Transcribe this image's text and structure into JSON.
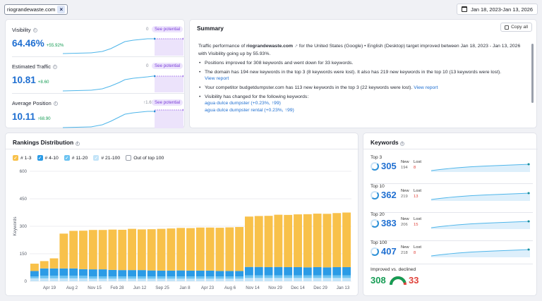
{
  "header": {
    "domain_chip": "riograndewaste.com",
    "close_glyph": "×",
    "date_range": "Jan 18, 2023-Jan 13, 2026",
    "calendar_icon": "calendar-icon"
  },
  "metrics": [
    {
      "title": "Visibility",
      "value": "64.46%",
      "delta": "+55.92%",
      "potential_num": "0",
      "potential_label": "See potential"
    },
    {
      "title": "Estimated Traffic",
      "value": "10.81",
      "delta": "+8.60",
      "potential_num": "0",
      "potential_label": "See potential"
    },
    {
      "title": "Average Position",
      "value": "10.11",
      "delta": "↑68.90",
      "potential_num": "↑1.62",
      "potential_label": "See potential"
    }
  ],
  "summary": {
    "title": "Summary",
    "copy_label": "Copy all",
    "intro_a": "Traffic performance of ",
    "intro_domain": "riograndewaste.com",
    "intro_b": " for the United States (Google) • English (Desktop) target improved between Jan 18, 2023 - Jan 13, 2026 with Visibility going up by 55.93%.",
    "bullet1": "Positions improved for 308 keywords and went down for 33 keywords.",
    "bullet2": "The domain has 194 new keywords in the top 3 (8 keywords were lost). It also has 219 new keywords in the top 10 (13 keywords were lost).",
    "view_report": "View report",
    "bullet3": "Your competitor budgetdumpster.com has 113 new keywords in the top 3 (22 keywords were lost).",
    "bullet4": "Visibility has changed for the following keywords:",
    "kw1": "agua dulce dumpster",
    "kw1_change": "(+0.23%, ↑99)",
    "kw2": "agua dulce dumpster rental",
    "kw2_change": "(+0.23%, ↑99)"
  },
  "rankings": {
    "title": "Rankings Distribution",
    "legend": [
      "# 1-3",
      "# 4-10",
      "# 11-20",
      "# 21-100",
      "Out of top 100"
    ],
    "ylabel": "Keywords"
  },
  "chart_data": {
    "type": "bar",
    "stacked": true,
    "title": "Rankings Distribution",
    "ylabel": "Keywords",
    "ylim": [
      0,
      600
    ],
    "yticks": [
      0,
      150,
      300,
      450,
      600
    ],
    "x_tick_labels": [
      "Apr 19",
      "Aug 2",
      "Nov 15",
      "Feb 28",
      "Jun 12",
      "Sep 25",
      "Jan 8",
      "Apr 23",
      "Aug 6",
      "Nov 14",
      "Nov 29",
      "Dec 14",
      "Dec 29",
      "Jan 13"
    ],
    "series": [
      {
        "name": "# 1-3",
        "color": "#f8c14a",
        "values": [
          40,
          40,
          55,
          190,
          205,
          210,
          215,
          215,
          220,
          220,
          225,
          222,
          225,
          228,
          230,
          232,
          232,
          235,
          235,
          236,
          238,
          240,
          275,
          278,
          280,
          285,
          285,
          288,
          290,
          292,
          292,
          295,
          298
        ]
      },
      {
        "name": "# 4-10",
        "color": "#2b9be6",
        "values": [
          30,
          40,
          40,
          40,
          40,
          36,
          38,
          38,
          36,
          35,
          35,
          35,
          33,
          32,
          32,
          33,
          32,
          32,
          32,
          30,
          30,
          30,
          46,
          46,
          45,
          46,
          45,
          45,
          44,
          45,
          44,
          45,
          45
        ]
      },
      {
        "name": "# 11-20",
        "color": "#6cc3f1",
        "values": [
          10,
          14,
          14,
          14,
          14,
          14,
          13,
          13,
          12,
          12,
          12,
          12,
          12,
          12,
          12,
          12,
          12,
          12,
          12,
          12,
          12,
          12,
          14,
          14,
          14,
          14,
          14,
          14,
          14,
          14,
          14,
          14,
          14
        ]
      },
      {
        "name": "# 21-100",
        "color": "#c3e4f8",
        "values": [
          16,
          16,
          16,
          16,
          16,
          16,
          14,
          14,
          14,
          14,
          14,
          14,
          14,
          14,
          14,
          14,
          14,
          14,
          14,
          14,
          14,
          14,
          18,
          18,
          18,
          18,
          18,
          18,
          18,
          18,
          18,
          18,
          18
        ]
      },
      {
        "name": "Out of top 100",
        "color": "#ffffff",
        "values": []
      }
    ]
  },
  "keywords": {
    "title": "Keywords",
    "blocks": [
      {
        "label": "Top 3",
        "value": "305",
        "new_label": "New",
        "lost_label": "Lost",
        "new": "194",
        "lost": "8"
      },
      {
        "label": "Top 10",
        "value": "362",
        "new_label": "New",
        "lost_label": "Lost",
        "new": "219",
        "lost": "13"
      },
      {
        "label": "Top 20",
        "value": "383",
        "new_label": "New",
        "lost_label": "Lost",
        "new": "206",
        "lost": "15"
      },
      {
        "label": "Top 100",
        "value": "407",
        "new_label": "New",
        "lost_label": "Lost",
        "new": "218",
        "lost": "8"
      }
    ],
    "improved_label": "Improved vs. declined",
    "improved": "308",
    "declined": "33",
    "improved_ratio": 0.9
  },
  "colors": {
    "accent": "#1f6fd1",
    "improved": "#159c54",
    "declined": "#e0433b",
    "potential": "#7a3dd8"
  }
}
